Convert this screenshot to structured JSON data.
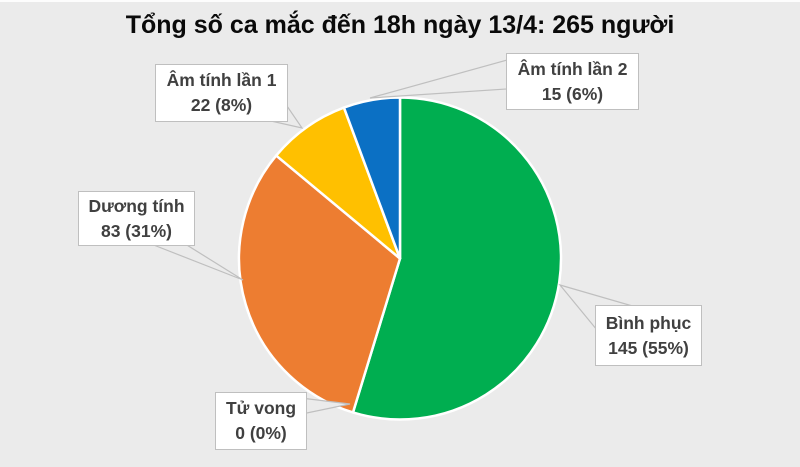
{
  "title": "Tổng số ca mắc đến 18h ngày 13/4: 265 người",
  "chart_data": {
    "type": "pie",
    "title": "Tổng số ca mắc đến 18h ngày 13/4: 265 người",
    "total": 265,
    "categories": [
      "Bình phục",
      "Tử vong",
      "Dương tính",
      "Âm tính lần 1",
      "Âm tính lần 2"
    ],
    "values": [
      145,
      0,
      83,
      22,
      15
    ],
    "percents": [
      "55%",
      "0%",
      "31%",
      "8%",
      "6%"
    ],
    "ids": [
      "binh-phuc",
      "tu-vong",
      "duong-tinh",
      "am-tinh-lan-1",
      "am-tinh-lan-2"
    ],
    "colors": [
      "#00AE50",
      "#A6A6A6",
      "#ED7D31",
      "#FFC000",
      "#0B70C4"
    ],
    "background": "#EBEBEB",
    "label_style": "callout-boxes-with-leader-wedges",
    "start_angle": "12-o'clock",
    "direction": "clockwise",
    "legend_position": "none"
  },
  "labels": [
    {
      "id": "am-tinh-lan-1",
      "name": "Âm tính lần 1",
      "value": "22 (8%)"
    },
    {
      "id": "am-tinh-lan-2",
      "name": "Âm tính lần 2",
      "value": "15 (6%)"
    },
    {
      "id": "duong-tinh",
      "name": "Dương tính",
      "value": "83 (31%)"
    },
    {
      "id": "tu-vong",
      "name": "Tử vong",
      "value": "0 (0%)"
    },
    {
      "id": "binh-phuc",
      "name": "Bình phục",
      "value": "145 (55%)"
    }
  ]
}
